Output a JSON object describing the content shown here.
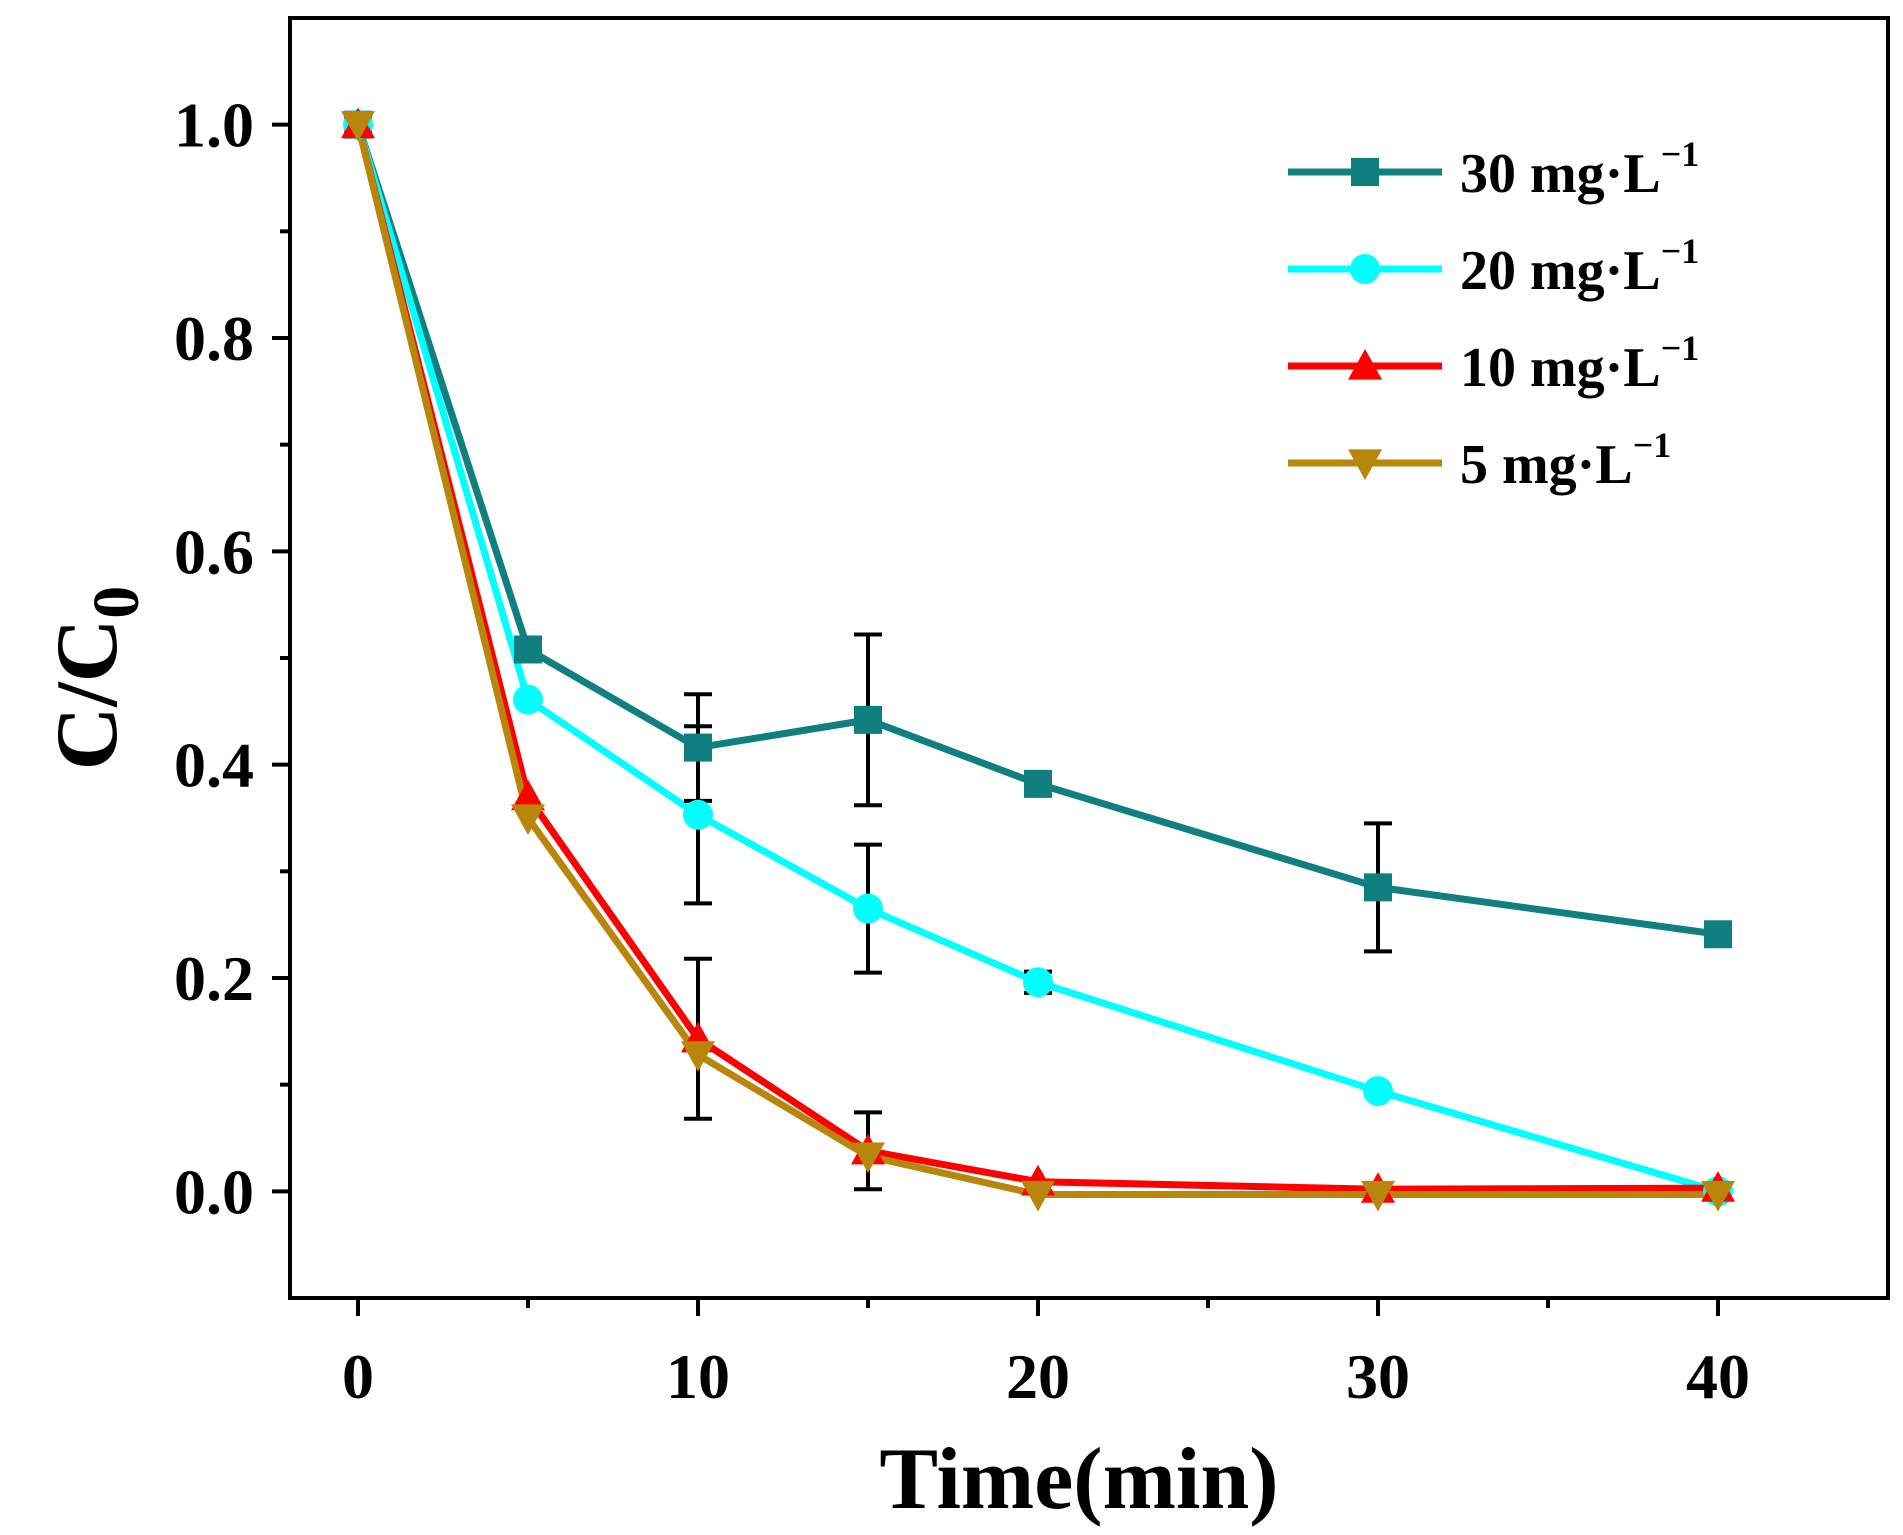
{
  "chart_data": {
    "type": "line",
    "xlabel": "Time(min)",
    "ylabel_main": "C/C",
    "ylabel_sub": "0",
    "xlim": [
      -2,
      45
    ],
    "ylim": [
      -0.1,
      1.1
    ],
    "x_ticks": [
      0,
      10,
      20,
      30,
      40
    ],
    "x_minor_ticks": [
      5,
      15,
      25,
      35
    ],
    "y_ticks": [
      "0.0",
      "0.2",
      "0.4",
      "0.6",
      "0.8",
      "1.0"
    ],
    "y_minor_ticks": [
      0.1,
      0.3,
      0.5,
      0.7,
      0.9
    ],
    "grid": false,
    "legend_position": "top-right",
    "x": [
      0,
      5,
      10,
      15,
      20,
      30,
      40
    ],
    "series": [
      {
        "name": "30 mg·L",
        "name_sup": "−1",
        "color": "#0f7f7f",
        "marker": "square",
        "values": [
          1.0,
          0.508,
          0.416,
          0.442,
          0.382,
          0.285,
          0.241
        ],
        "errors": [
          0,
          0.008,
          0.05,
          0.08,
          0,
          0.06,
          0
        ]
      },
      {
        "name": "20 mg·L",
        "name_sup": "−1",
        "color": "#00ffff",
        "marker": "circle",
        "values": [
          1.0,
          0.461,
          0.353,
          0.265,
          0.196,
          0.094,
          0.0
        ],
        "errors": [
          0,
          0,
          0.083,
          0.06,
          0.01,
          0,
          0
        ]
      },
      {
        "name": "10 mg·L",
        "name_sup": "−1",
        "color": "#ff0000",
        "marker": "triangle-up",
        "values": [
          1.0,
          0.37,
          0.143,
          0.038,
          0.009,
          0.002,
          0.003
        ],
        "errors": [
          0,
          0,
          0.075,
          0.036,
          0,
          0,
          0
        ]
      },
      {
        "name": "5  mg·L",
        "name_sup": "−1",
        "color": "#b8860b",
        "marker": "triangle-down",
        "values": [
          1.0,
          0.35,
          0.128,
          0.033,
          -0.003,
          -0.003,
          -0.003
        ],
        "errors": [
          0,
          0,
          0,
          0,
          0,
          0,
          0
        ]
      }
    ]
  }
}
